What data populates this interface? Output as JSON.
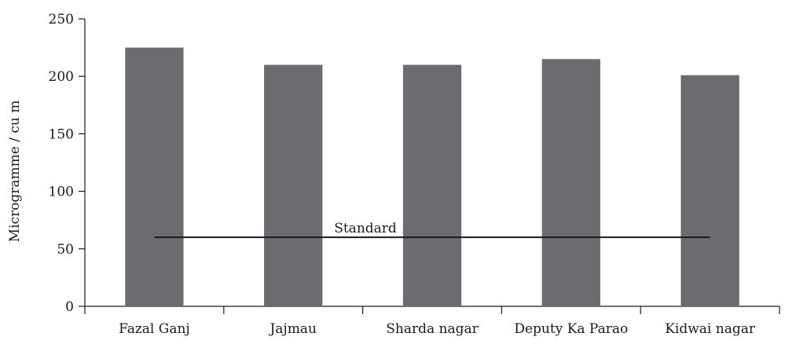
{
  "chart_data": {
    "type": "bar",
    "title": "",
    "xlabel": "",
    "ylabel": "Microgramme / cu m",
    "ylim": [
      0,
      250
    ],
    "yticks": [
      0,
      50,
      100,
      150,
      200,
      250
    ],
    "categories": [
      "Fazal Ganj",
      "Jajmau",
      "Sharda nagar",
      "Deputy Ka Parao",
      "Kidwai nagar"
    ],
    "values": [
      225,
      210,
      210,
      215,
      201
    ],
    "bar_color": "#6b6c70",
    "reference_line": {
      "label": "Standard",
      "value": 60,
      "color": "#1a1a1a"
    },
    "grid": false,
    "legend": "none"
  }
}
